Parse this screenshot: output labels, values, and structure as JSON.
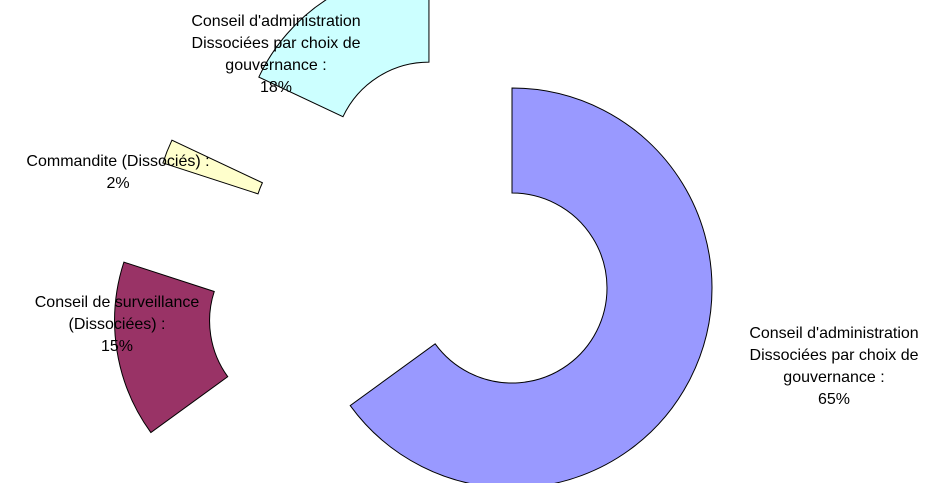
{
  "chart_data": {
    "type": "pie",
    "variant": "exploded-doughnut",
    "title": "",
    "legend": "none",
    "slices": [
      {
        "label_lines": [
          "Conseil d'administration",
          "Dissociées par choix de",
          "gouvernance :"
        ],
        "value": 65,
        "value_label": "65%",
        "color": "#9999FF"
      },
      {
        "label_lines": [
          "Conseil de surveillance",
          "(Dissociées) :"
        ],
        "value": 15,
        "value_label": "15%",
        "color": "#993366"
      },
      {
        "label_lines": [
          "Commandite (Dissociés) :"
        ],
        "value": 2,
        "value_label": "2%",
        "color": "#FFFFCC"
      },
      {
        "label_lines": [
          "Conseil d'administration",
          "Dissociées par choix de",
          "gouvernance :"
        ],
        "value": 18,
        "value_label": "18%",
        "color": "#CCFFFF"
      }
    ]
  }
}
